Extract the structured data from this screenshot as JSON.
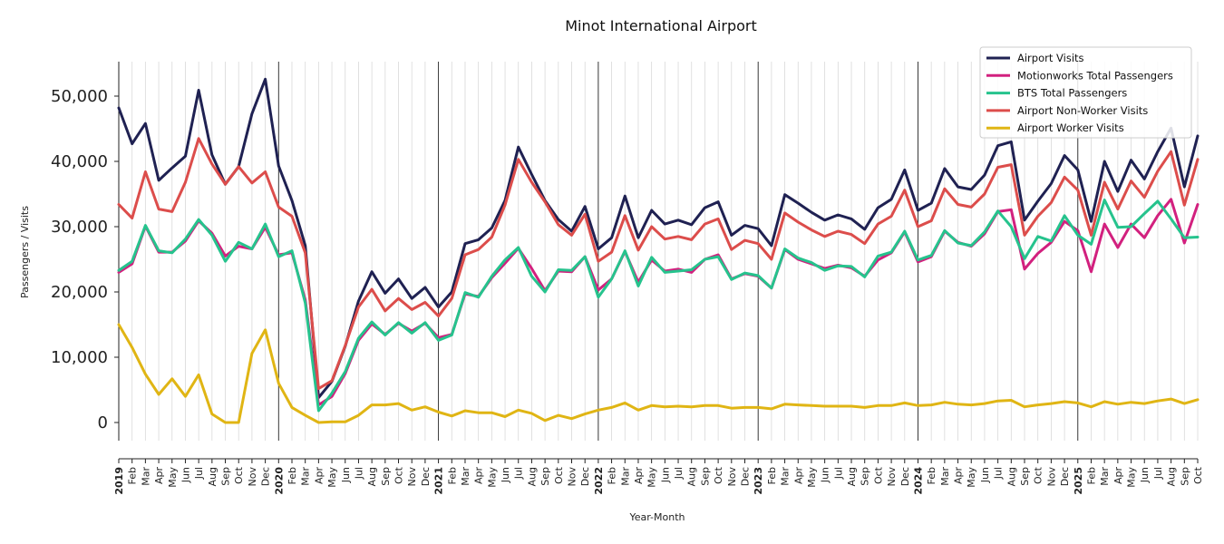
{
  "chart_data": {
    "type": "line",
    "title": "Minot International Airport",
    "xlabel": "Year-Month",
    "ylabel": "Passengers / Visits",
    "ylim": [
      -2500,
      55000
    ],
    "yticks": [
      0,
      10000,
      20000,
      30000,
      40000,
      50000
    ],
    "ytick_labels": [
      "0",
      "10,000",
      "20,000",
      "30,000",
      "40,000",
      "50,000"
    ],
    "grid": "vertical monthly",
    "legend_position": "top-right",
    "categories": [
      "2019",
      "Feb",
      "Mar",
      "Apr",
      "May",
      "Jun",
      "Jul",
      "Aug",
      "Sep",
      "Oct",
      "Nov",
      "Dec",
      "2020",
      "Feb",
      "Mar",
      "Apr",
      "May",
      "Jun",
      "Jul",
      "Aug",
      "Sep",
      "Oct",
      "Nov",
      "Dec",
      "2021",
      "Feb",
      "Mar",
      "Apr",
      "May",
      "Jun",
      "Jul",
      "Aug",
      "Sep",
      "Oct",
      "Nov",
      "Dec",
      "2022",
      "Feb",
      "Mar",
      "Apr",
      "May",
      "Jun",
      "Jul",
      "Aug",
      "Sep",
      "Oct",
      "Nov",
      "Dec",
      "2023",
      "Feb",
      "Mar",
      "Apr",
      "May",
      "Jun",
      "Jul",
      "Aug",
      "Sep",
      "Oct",
      "Nov",
      "Dec",
      "2024",
      "Feb",
      "Mar",
      "Apr",
      "May",
      "Jun",
      "Jul",
      "Aug",
      "Sep",
      "Oct",
      "Nov",
      "Dec",
      "2025",
      "Feb",
      "Mar",
      "Apr",
      "May",
      "Jun",
      "Jul",
      "Aug",
      "Sep",
      "Oct"
    ],
    "year_labels": [
      "2019",
      "2020",
      "2021",
      "2022",
      "2023",
      "2024",
      "2025"
    ],
    "series": [
      {
        "name": "Airport Visits",
        "color": "#1f2152",
        "values": [
          48200,
          42700,
          45800,
          37100,
          39000,
          40800,
          50900,
          41000,
          36500,
          39200,
          47300,
          52600,
          39300,
          34000,
          27100,
          3800,
          6300,
          11700,
          18600,
          23100,
          19800,
          22000,
          19000,
          20700,
          17700,
          20000,
          27400,
          28000,
          29800,
          34000,
          42200,
          38000,
          34000,
          31100,
          29300,
          33100,
          26600,
          28300,
          34700,
          28300,
          32500,
          30400,
          31000,
          30300,
          32900,
          33800,
          28700,
          30200,
          29700,
          27100,
          34900,
          33600,
          32200,
          31000,
          31800,
          31200,
          29600,
          32900,
          34200,
          38700,
          32500,
          33600,
          38900,
          36100,
          35700,
          37900,
          42400,
          43000,
          31000,
          33900,
          36600,
          40900,
          38700,
          30800,
          40000,
          35400,
          40200,
          37300,
          41500,
          45100,
          36100,
          43900
        ]
      },
      {
        "name": "Motionworks Total Passengers",
        "color": "#d2207e",
        "values": [
          23000,
          24300,
          30100,
          26100,
          26100,
          27800,
          30900,
          29000,
          25500,
          27000,
          26600,
          29900,
          25700,
          26000,
          18800,
          2700,
          4000,
          7500,
          12600,
          15100,
          13500,
          15200,
          14000,
          15200,
          13000,
          13500,
          19700,
          19300,
          22200,
          24400,
          26700,
          23600,
          20200,
          23200,
          23100,
          25400,
          20300,
          22000,
          26200,
          21500,
          24900,
          23200,
          23500,
          23000,
          25000,
          25700,
          22000,
          22800,
          22400,
          20600,
          26500,
          25000,
          24300,
          23600,
          24100,
          23700,
          22400,
          24900,
          26000,
          29200,
          24600,
          25400,
          29300,
          27600,
          27000,
          28900,
          32300,
          32600,
          23500,
          25900,
          27600,
          30800,
          29400,
          23100,
          30400,
          26800,
          30400,
          28300,
          31700,
          34200,
          27500,
          33400
        ]
      },
      {
        "name": "BTS Total Passengers",
        "color": "#26c38d",
        "values": [
          23300,
          24700,
          30200,
          26300,
          26000,
          28100,
          31100,
          28700,
          24700,
          27600,
          26600,
          30400,
          25400,
          26300,
          18300,
          1800,
          4500,
          7800,
          12900,
          15400,
          13400,
          15300,
          13700,
          15300,
          12600,
          13400,
          19900,
          19200,
          22400,
          24900,
          26800,
          22400,
          20000,
          23400,
          23300,
          25400,
          19200,
          22000,
          26300,
          20900,
          25300,
          23000,
          23200,
          23400,
          25000,
          25400,
          21900,
          22900,
          22500,
          20600,
          26600,
          25200,
          24500,
          23300,
          24000,
          23900,
          22300,
          25500,
          26100,
          29300,
          24900,
          25600,
          29400,
          27500,
          27100,
          29200,
          32400,
          30000,
          25100,
          28500,
          27800,
          31700,
          28700,
          27300,
          34100,
          29900,
          30000,
          32000,
          33900,
          31200,
          28300,
          28400
        ]
      },
      {
        "name": "Airport Non-Worker Visits",
        "color": "#dc4d4b",
        "values": [
          33400,
          31300,
          38400,
          32700,
          32300,
          36800,
          43500,
          39600,
          36500,
          39200,
          36700,
          38400,
          33000,
          31600,
          26000,
          5200,
          6400,
          11800,
          17700,
          20400,
          17100,
          19000,
          17300,
          18400,
          16300,
          19000,
          25700,
          26500,
          28400,
          33300,
          40300,
          36800,
          33800,
          30300,
          28700,
          31900,
          24700,
          26100,
          31700,
          26400,
          30000,
          28100,
          28500,
          28000,
          30400,
          31200,
          26500,
          27900,
          27400,
          25000,
          32100,
          30700,
          29500,
          28500,
          29300,
          28800,
          27400,
          30400,
          31600,
          35600,
          30000,
          30900,
          35800,
          33400,
          33000,
          35000,
          39100,
          39500,
          28700,
          31600,
          33700,
          37600,
          35600,
          28700,
          36800,
          32700,
          37000,
          34500,
          38500,
          41500,
          33300,
          40300
        ]
      },
      {
        "name": "Airport Worker Visits",
        "color": "#e0b514",
        "values": [
          15000,
          11500,
          7400,
          4300,
          6700,
          4000,
          7300,
          1300,
          0,
          0,
          10600,
          14200,
          6000,
          2300,
          1100,
          0,
          100,
          100,
          1100,
          2700,
          2700,
          2900,
          1900,
          2400,
          1600,
          1000,
          1800,
          1500,
          1500,
          900,
          1900,
          1400,
          300,
          1100,
          600,
          1300,
          1900,
          2300,
          3000,
          1900,
          2600,
          2400,
          2500,
          2400,
          2600,
          2600,
          2200,
          2300,
          2300,
          2100,
          2800,
          2700,
          2600,
          2500,
          2500,
          2500,
          2300,
          2600,
          2600,
          3000,
          2600,
          2700,
          3100,
          2800,
          2700,
          2900,
          3300,
          3400,
          2400,
          2700,
          2900,
          3200,
          3000,
          2400,
          3200,
          2800,
          3100,
          2900,
          3300,
          3600,
          2900,
          3500
        ]
      }
    ]
  }
}
